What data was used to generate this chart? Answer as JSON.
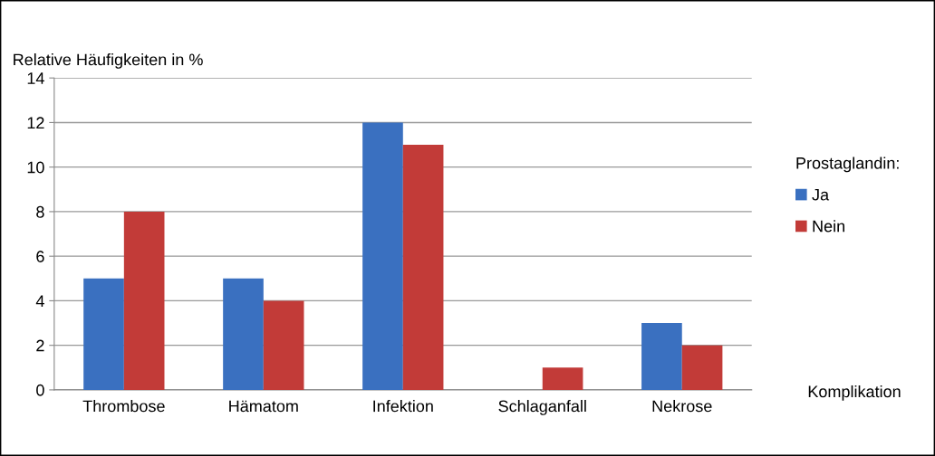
{
  "chart_data": {
    "type": "bar",
    "xlabel": "Komplikation",
    "ylabel": "Relative Häufigkeiten in %",
    "legend_title": "Prostaglandin:",
    "categories": [
      "Thrombose",
      "Hämatom",
      "Infektion",
      "Schlaganfall",
      "Nekrose"
    ],
    "series": [
      {
        "name": "Ja",
        "color": "#3a70c0",
        "values": [
          5,
          5,
          12,
          0,
          3
        ]
      },
      {
        "name": "Nein",
        "color": "#c23b38",
        "values": [
          8,
          4,
          11,
          1,
          2
        ]
      }
    ],
    "ylim": [
      0,
      14
    ],
    "yticks": [
      0,
      2,
      4,
      6,
      8,
      10,
      12,
      14
    ],
    "grid": "y",
    "legend": "right"
  }
}
